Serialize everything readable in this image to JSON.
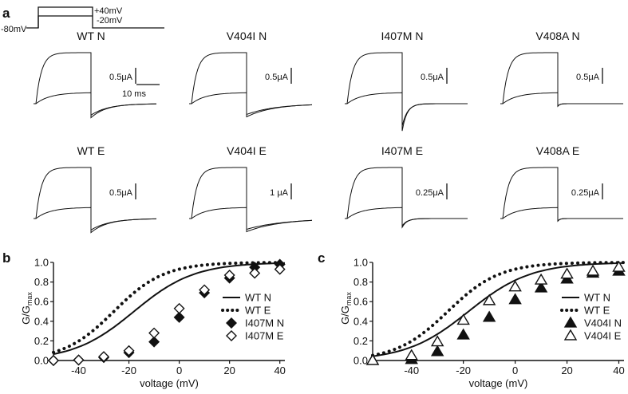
{
  "panel_labels": {
    "a": "a",
    "b": "b",
    "c": "c"
  },
  "protocol": {
    "hold": "-80mV",
    "step_high": "+40mV",
    "step_low": "-20mV"
  },
  "scale_bar_time": "10 ms",
  "traces": [
    {
      "title": "WT N",
      "scale": "0.5μA",
      "tail_depth": 0.32,
      "tail_tau": 0.32
    },
    {
      "title": "V404I N",
      "scale": "0.5μA",
      "tail_depth": 0.3,
      "tail_tau": 0.55
    },
    {
      "title": "I407M N",
      "scale": "0.5μA",
      "tail_depth": 0.62,
      "tail_tau": 0.1
    },
    {
      "title": "V408A N",
      "scale": "0.5μA",
      "tail_depth": 0.06,
      "tail_tau": 0.04
    },
    {
      "title": "WT E",
      "scale": "0.5μA",
      "tail_depth": 0.32,
      "tail_tau": 0.35
    },
    {
      "title": "V404I E",
      "scale": "1 μA",
      "tail_depth": 0.3,
      "tail_tau": 0.7
    },
    {
      "title": "I407M E",
      "scale": "0.25μA",
      "tail_depth": 0.2,
      "tail_tau": 0.1
    },
    {
      "title": "V408A E",
      "scale": "0.25μA",
      "tail_depth": 0.06,
      "tail_tau": 0.04
    }
  ],
  "colors": {
    "ink": "#111111",
    "background": "#ffffff"
  },
  "chart_data": [
    {
      "type": "scatter",
      "xlabel": "voltage (mV)",
      "ylabel_main": "G/G",
      "ylabel_sub": "max",
      "xlim": [
        -50,
        42
      ],
      "ylim": [
        0,
        1.0
      ],
      "xticks": [
        -40,
        -20,
        0,
        20,
        40
      ],
      "yticks": [
        "0.0",
        "0.2",
        "0.4",
        "0.6",
        "0.8",
        "1.0"
      ],
      "legend_position": "bottom-right",
      "series": [
        {
          "name": "WT N",
          "style": "solid-line",
          "v_half": -18,
          "slope": 12,
          "x": [
            -50,
            -40,
            -30,
            -20,
            -10,
            0,
            10,
            20,
            30,
            40
          ],
          "y": [
            0.04,
            0.1,
            0.24,
            0.48,
            0.72,
            0.86,
            0.92,
            0.95,
            0.96,
            0.96
          ]
        },
        {
          "name": "WT E",
          "style": "dotted-line",
          "v_half": -26,
          "slope": 10,
          "x": [
            -50,
            -40,
            -30,
            -20,
            -10,
            0,
            10,
            20,
            30,
            40
          ],
          "y": [
            0.08,
            0.19,
            0.41,
            0.67,
            0.85,
            0.93,
            0.97,
            0.98,
            0.98,
            0.98
          ]
        },
        {
          "name": "I407M N",
          "style": "filled-diamond",
          "x": [
            -50,
            -40,
            -30,
            -20,
            -10,
            0,
            10,
            20,
            30,
            40
          ],
          "y": [
            0.0,
            0.005,
            0.03,
            0.08,
            0.19,
            0.44,
            0.69,
            0.84,
            0.95,
            0.98
          ]
        },
        {
          "name": "I407M E",
          "style": "open-diamond",
          "x": [
            -50,
            -40,
            -30,
            -20,
            -10,
            0,
            10,
            20,
            30,
            40
          ],
          "y": [
            0.0,
            0.005,
            0.04,
            0.1,
            0.28,
            0.53,
            0.72,
            0.87,
            0.89,
            0.93
          ]
        }
      ]
    },
    {
      "type": "scatter",
      "xlabel": "voltage (mV)",
      "ylabel_main": "G/G",
      "ylabel_sub": "max",
      "xlim": [
        -55,
        42
      ],
      "ylim": [
        0,
        1.0
      ],
      "xticks": [
        -40,
        -20,
        0,
        20,
        40
      ],
      "yticks": [
        "0.0",
        "0.2",
        "0.4",
        "0.6",
        "0.8",
        "1.0"
      ],
      "legend_position": "bottom-right",
      "series": [
        {
          "name": "WT N",
          "style": "solid-line",
          "v_half": -18,
          "slope": 12,
          "x": [
            -50,
            -40,
            -30,
            -20,
            -10,
            0,
            10,
            20,
            30,
            40
          ],
          "y": [
            0.04,
            0.1,
            0.24,
            0.48,
            0.72,
            0.86,
            0.92,
            0.95,
            0.96,
            0.96
          ]
        },
        {
          "name": "WT E",
          "style": "dotted-line",
          "v_half": -26,
          "slope": 10,
          "x": [
            -50,
            -40,
            -30,
            -20,
            -10,
            0,
            10,
            20,
            30,
            40
          ],
          "y": [
            0.08,
            0.19,
            0.41,
            0.67,
            0.85,
            0.93,
            0.97,
            0.98,
            0.98,
            0.98
          ]
        },
        {
          "name": "V404I N",
          "style": "filled-triangle",
          "x": [
            -55,
            -40,
            -30,
            -20,
            -10,
            0,
            10,
            20,
            30,
            40
          ],
          "y": [
            0.0,
            0.01,
            0.09,
            0.26,
            0.44,
            0.62,
            0.74,
            0.83,
            0.89,
            0.91
          ]
        },
        {
          "name": "V404I E",
          "style": "open-triangle",
          "x": [
            -55,
            -40,
            -30,
            -20,
            -10,
            0,
            10,
            20,
            30,
            40
          ],
          "y": [
            0.0,
            0.05,
            0.19,
            0.41,
            0.61,
            0.75,
            0.82,
            0.88,
            0.91,
            0.95
          ]
        }
      ]
    }
  ]
}
